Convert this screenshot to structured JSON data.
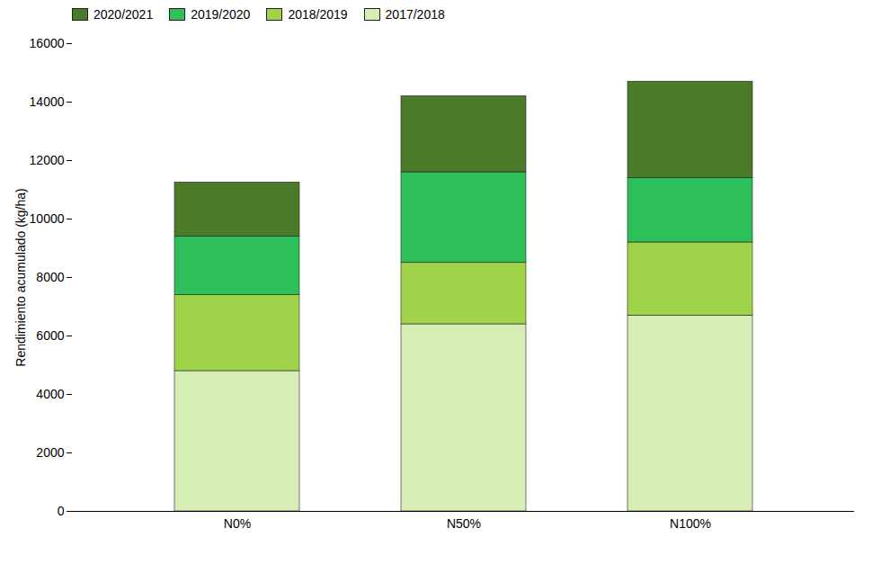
{
  "chart_data": {
    "type": "bar",
    "stacked": true,
    "categories": [
      "N0%",
      "N50%",
      "N100%"
    ],
    "series": [
      {
        "name": "2017/2018",
        "color": "#d6edb5",
        "values": [
          4800,
          6400,
          6700
        ]
      },
      {
        "name": "2018/2019",
        "color": "#9fd44a",
        "values": [
          2600,
          2100,
          2500
        ]
      },
      {
        "name": "2019/2020",
        "color": "#2dbf5a",
        "values": [
          2000,
          3100,
          2200
        ]
      },
      {
        "name": "2020/2021",
        "color": "#4a7a2a",
        "values": [
          1850,
          2600,
          3300
        ]
      }
    ],
    "ylabel": "Rendimiento acumulado (kg/ha)",
    "ylim": [
      0,
      16000
    ],
    "yticks": [
      0,
      2000,
      4000,
      6000,
      8000,
      10000,
      12000,
      14000,
      16000
    ],
    "legend": "upper left",
    "grid": false
  }
}
